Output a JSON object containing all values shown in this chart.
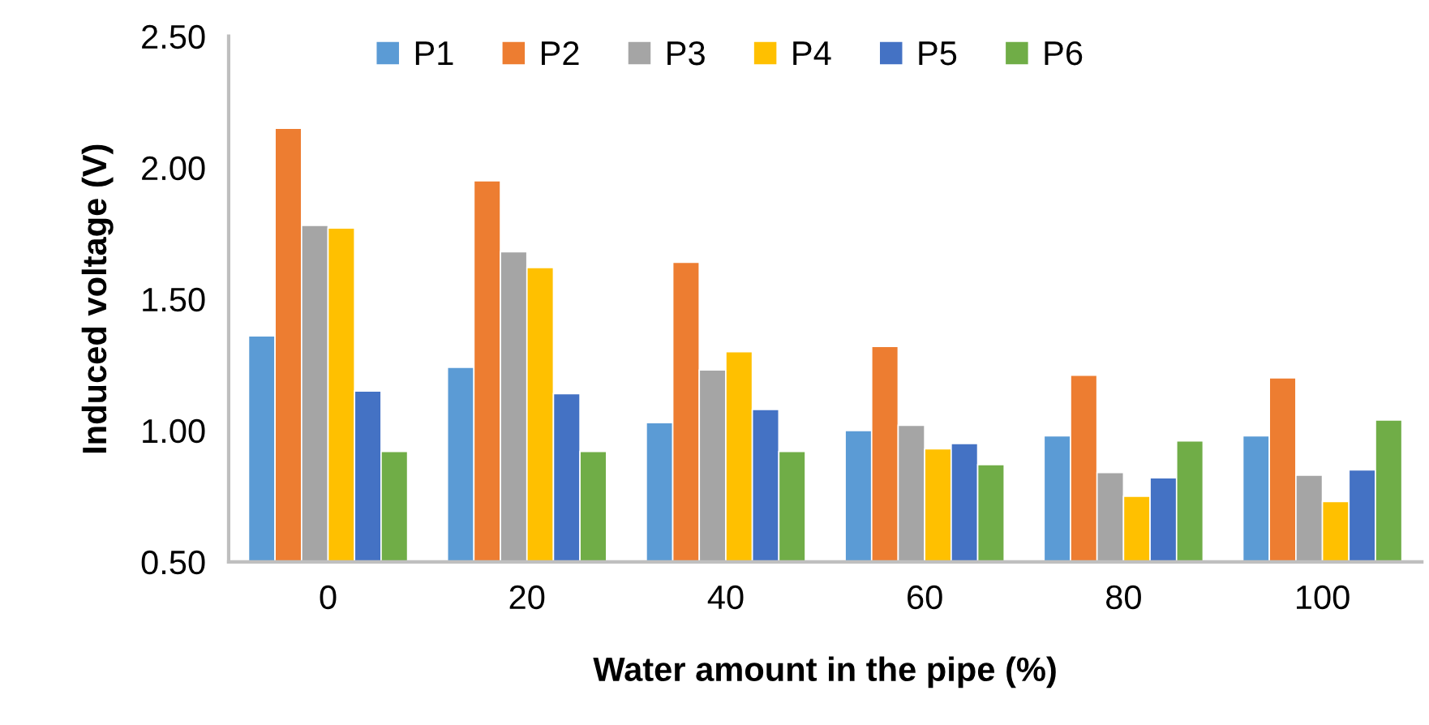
{
  "chart_data": {
    "type": "bar",
    "xlabel": "Water amount in the pipe (%)",
    "ylabel": "Induced voltage (V)",
    "categories": [
      "0",
      "20",
      "40",
      "60",
      "80",
      "100"
    ],
    "series": [
      {
        "name": "P1",
        "color": "#5b9bd5",
        "values": [
          1.36,
          1.24,
          1.03,
          1.0,
          0.98,
          0.98
        ]
      },
      {
        "name": "P2",
        "color": "#ed7d31",
        "values": [
          2.15,
          1.95,
          1.64,
          1.32,
          1.21,
          1.2
        ]
      },
      {
        "name": "P3",
        "color": "#a5a5a5",
        "values": [
          1.78,
          1.68,
          1.23,
          1.02,
          0.84,
          0.83
        ]
      },
      {
        "name": "P4",
        "color": "#ffc000",
        "values": [
          1.77,
          1.62,
          1.3,
          0.93,
          0.75,
          0.73
        ]
      },
      {
        "name": "P5",
        "color": "#4472c4",
        "values": [
          1.15,
          1.14,
          1.08,
          0.95,
          0.82,
          0.85
        ]
      },
      {
        "name": "P6",
        "color": "#70ad47",
        "values": [
          0.92,
          0.92,
          0.92,
          0.87,
          0.96,
          1.04
        ]
      }
    ],
    "ylim": [
      0.5,
      2.5
    ],
    "yticks": [
      {
        "value": 0.5,
        "label": "0.50"
      },
      {
        "value": 1.0,
        "label": "1.00"
      },
      {
        "value": 1.5,
        "label": "1.50"
      },
      {
        "value": 2.0,
        "label": "2.00"
      },
      {
        "value": 2.5,
        "label": "2.50"
      }
    ],
    "grid": false,
    "legend": "top"
  }
}
